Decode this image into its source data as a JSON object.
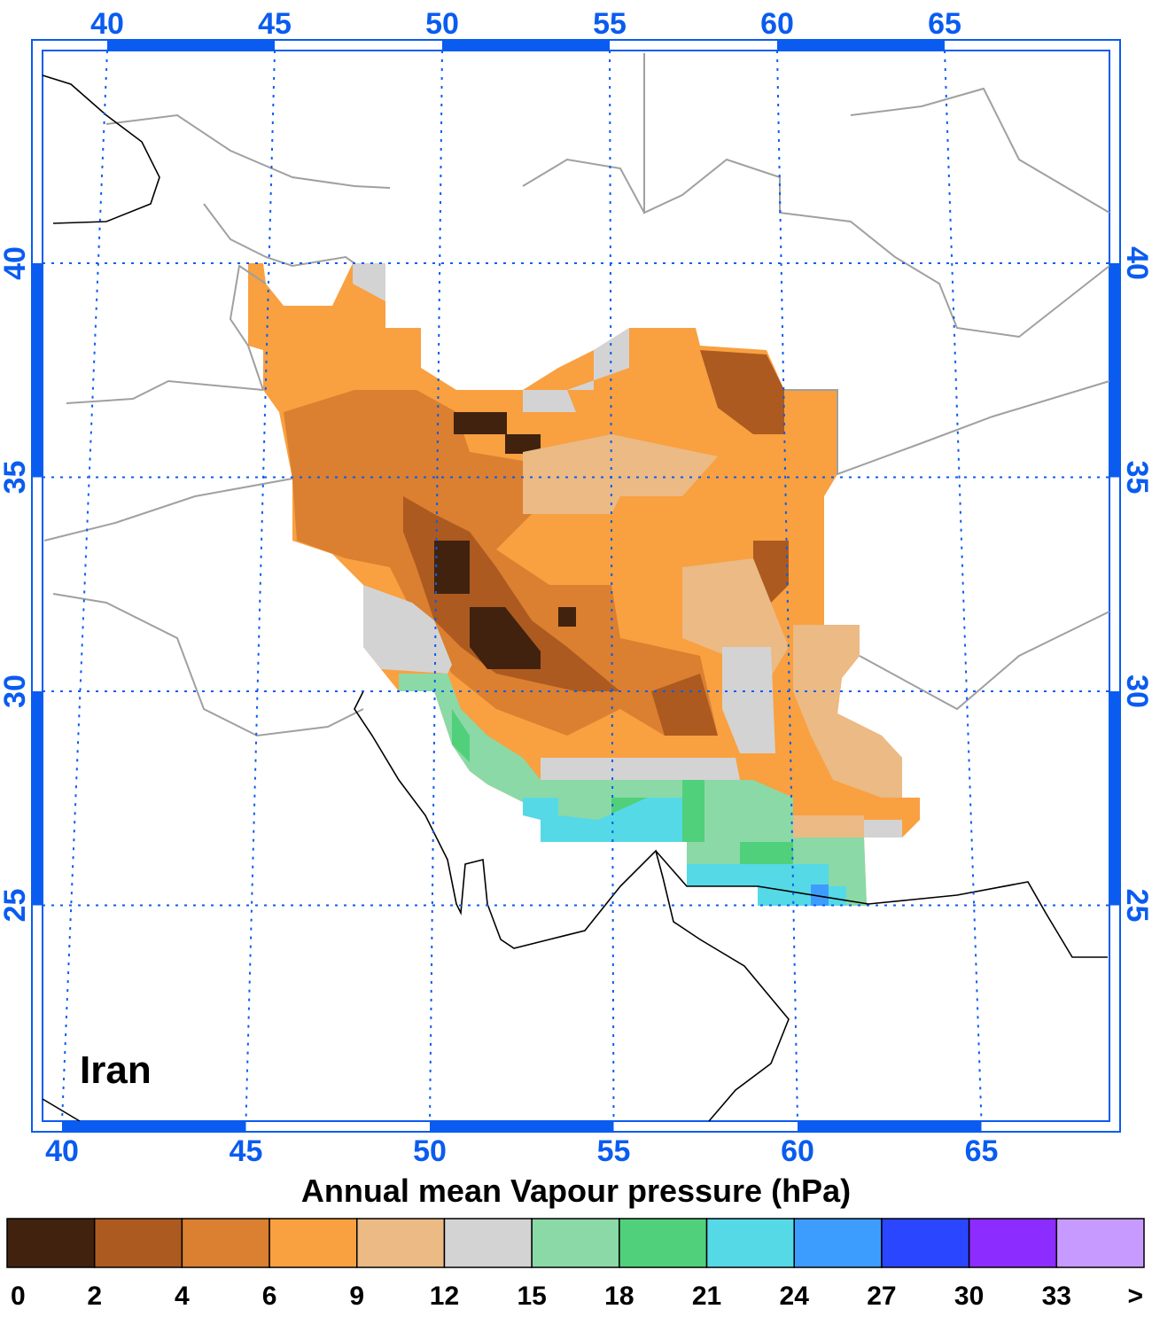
{
  "map": {
    "label": "Iran",
    "lon_ticks": [
      40,
      45,
      50,
      55,
      60,
      65
    ],
    "lat_ticks": [
      40,
      35,
      30,
      25
    ]
  },
  "colorbar": {
    "title": "Annual mean Vapour pressure (hPa)",
    "colors": [
      "#40220f",
      "#ac5a20",
      "#db7f30",
      "#f9a040",
      "#ebba85",
      "#d3d3d3",
      "#8bd9a6",
      "#50d07a",
      "#56d9e6",
      "#3c9dff",
      "#2b46ff",
      "#8c2cff",
      "#c79aff"
    ],
    "labels": [
      0,
      2,
      4,
      6,
      9,
      12,
      15,
      18,
      21,
      24,
      27,
      30,
      33,
      ">"
    ]
  }
}
